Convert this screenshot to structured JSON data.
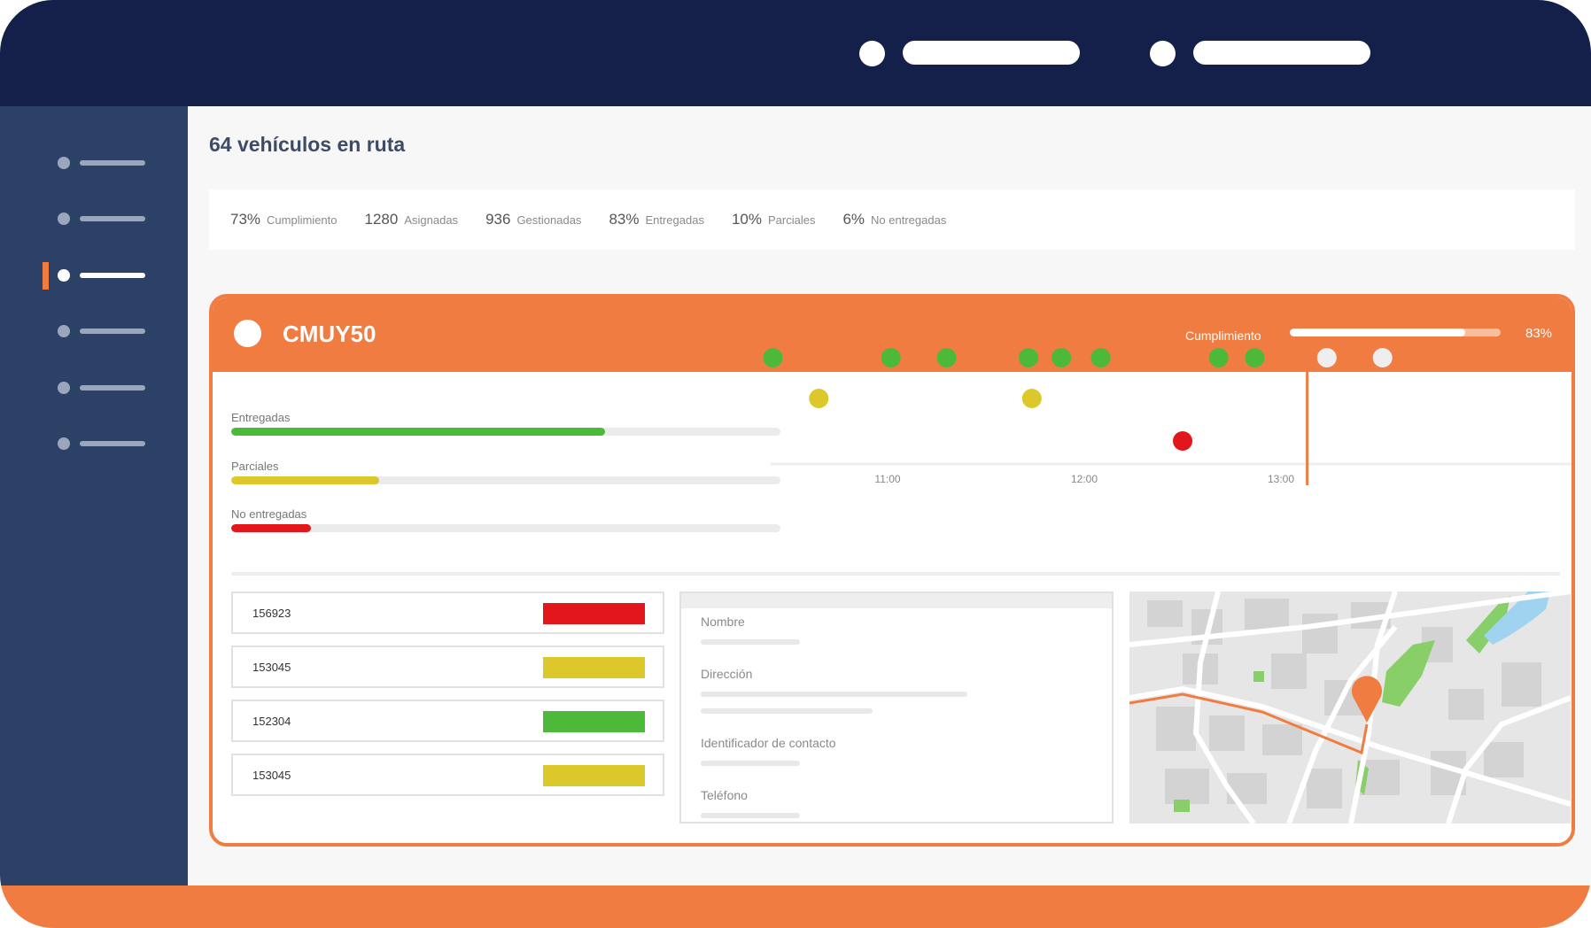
{
  "header": {
    "controls": [
      {
        "icon": "circle-icon",
        "pill": "placeholder"
      },
      {
        "icon": "circle-icon",
        "pill": "placeholder"
      }
    ]
  },
  "sidebar": {
    "items": [
      {
        "active": false
      },
      {
        "active": false
      },
      {
        "active": true
      },
      {
        "active": false
      },
      {
        "active": false
      },
      {
        "active": false
      }
    ]
  },
  "main": {
    "title": "64 vehículos en ruta",
    "stats": [
      {
        "value": "73%",
        "label": "Cumplimiento"
      },
      {
        "value": "1280",
        "label": "Asignadas"
      },
      {
        "value": "936",
        "label": "Gestionadas"
      },
      {
        "value": "83%",
        "label": "Entregadas"
      },
      {
        "value": "10%",
        "label": "Parciales"
      },
      {
        "value": "6%",
        "label": "No entregadas"
      }
    ]
  },
  "vehicle": {
    "id": "CMUY50",
    "compliance_label": "Cumplimiento",
    "compliance_value": "83%",
    "compliance_fraction": 0.83,
    "bars": [
      {
        "label": "Entregadas",
        "fraction": 0.68,
        "color": "#4cb93a"
      },
      {
        "label": "Parciales",
        "fraction": 0.27,
        "color": "#dcc82a"
      },
      {
        "label": "No entregadas",
        "fraction": 0.145,
        "color": "#e2161b"
      }
    ],
    "timeline": {
      "ticks": [
        "11:00",
        "12:00",
        "13:00"
      ],
      "now_marker": "13:08",
      "events": [
        {
          "time": "10:25",
          "status": "delivered"
        },
        {
          "time": "10:39",
          "status": "partial"
        },
        {
          "time": "11:01",
          "status": "delivered"
        },
        {
          "time": "11:18",
          "status": "delivered"
        },
        {
          "time": "11:43",
          "status": "delivered"
        },
        {
          "time": "11:44",
          "status": "partial"
        },
        {
          "time": "11:53",
          "status": "delivered"
        },
        {
          "time": "12:05",
          "status": "delivered"
        },
        {
          "time": "12:30",
          "status": "not_delivered"
        },
        {
          "time": "12:41",
          "status": "delivered"
        },
        {
          "time": "12:52",
          "status": "delivered"
        },
        {
          "time": "13:14",
          "status": "pending"
        },
        {
          "time": "13:31",
          "status": "pending"
        }
      ],
      "colors": {
        "delivered": "#4cb93a",
        "partial": "#dcc82a",
        "not_delivered": "#e2161b",
        "pending": "#eeeeee",
        "now": "#f07c42"
      }
    },
    "orders": [
      {
        "id": "156923",
        "status_color": "#e2161b"
      },
      {
        "id": "153045",
        "status_color": "#dcc82a"
      },
      {
        "id": "152304",
        "status_color": "#4cb93a"
      },
      {
        "id": "153045",
        "status_color": "#dcc82a"
      }
    ],
    "detail_fields": [
      {
        "label": "Nombre"
      },
      {
        "label": "Dirección"
      },
      {
        "label": "Identificador de contacto"
      },
      {
        "label": "Teléfono"
      }
    ],
    "map": {
      "icon": "map-pin-icon",
      "route_color": "#f07c42"
    }
  }
}
